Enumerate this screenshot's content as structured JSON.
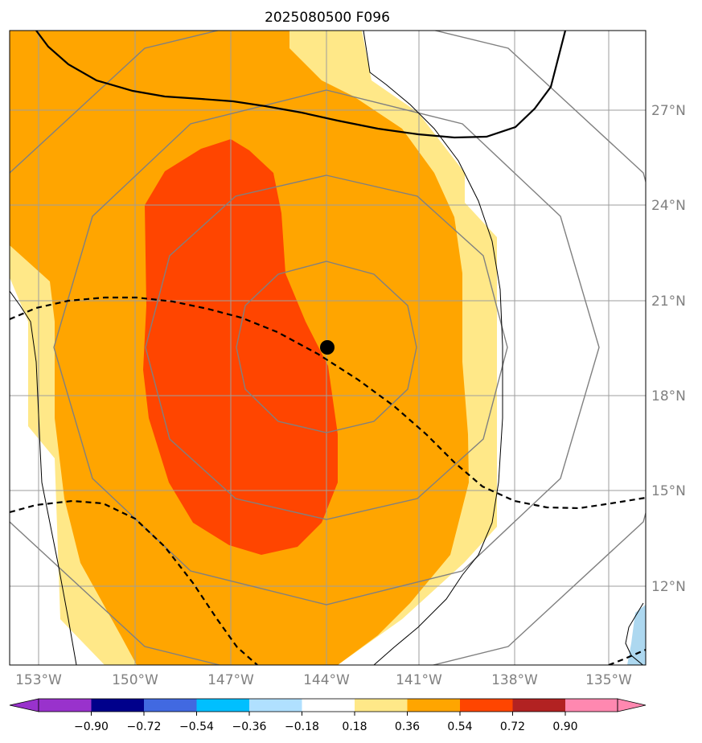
{
  "title": "2025080500 F096",
  "map": {
    "lon_range": [
      -154,
      -133.5
    ],
    "lat_range": [
      9.7,
      29.6
    ],
    "lon_labels": [
      "153°W",
      "150°W",
      "147°W",
      "144°W",
      "141°W",
      "138°W",
      "135°W"
    ],
    "lon_values": [
      -153,
      -150,
      -147,
      -144,
      -141,
      -138,
      -135
    ],
    "lat_labels": [
      "27°N",
      "24°N",
      "21°N",
      "18°N",
      "15°N",
      "12°N"
    ],
    "lat_values": [
      27,
      24,
      21,
      18,
      15,
      12
    ],
    "center_marker": {
      "lon": -144,
      "lat": 19.5,
      "color": "#000000"
    },
    "fill_colors": {
      "light": "#ffe888",
      "mid": "#ffa500",
      "high": "#ff4500",
      "neg_light": "#add8f0"
    }
  },
  "colorbar": {
    "tick_labels": [
      "−0.90",
      "−0.72",
      "−0.54",
      "−0.36",
      "−0.18",
      "0.18",
      "0.36",
      "0.54",
      "0.72",
      "0.90"
    ],
    "colors": [
      "#9932cc",
      "#00008b",
      "#4169e1",
      "#00bfff",
      "#b0e0ff",
      "#ffffff",
      "#ffe888",
      "#ffa500",
      "#ff4500",
      "#b22222",
      "#ff88b0",
      "#ff88b0"
    ]
  }
}
